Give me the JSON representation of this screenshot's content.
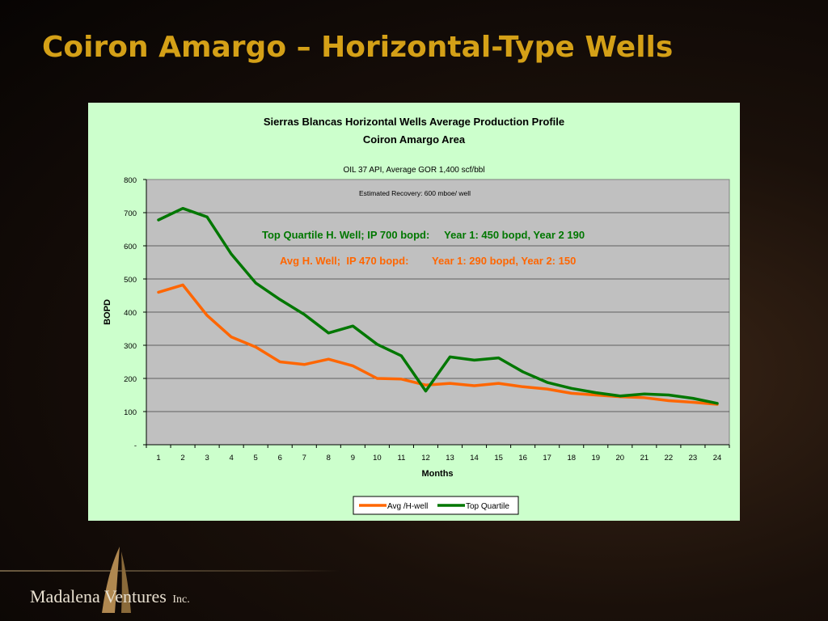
{
  "slide": {
    "title": "Coiron Amargo – Horizontal-Type Wells",
    "company": "Madalena Ventures",
    "company_suffix": "Inc."
  },
  "colors": {
    "avg": "#ff6600",
    "top": "#007700",
    "panel": "#ccffcc",
    "plot": "#c0c0c0",
    "title": "#d4a017"
  },
  "chart_data": {
    "type": "line",
    "title": "Sierras Blancas Horizontal Wells Average Production Profile",
    "subtitle": "Coiron Amargo Area",
    "note1": "OIL 37 API, Average GOR 1,400 scf/bbl",
    "note2": "Estimated Recovery: 600 mboe/ well",
    "annotation_top": "Top Quartile H. Well; IP 700 bopd:     Year 1: 450 bopd, Year 2 190",
    "annotation_avg": "Avg H. Well;  IP 470 bopd:        Year 1: 290 bopd, Year 2: 150",
    "xlabel": "Months",
    "ylabel": "BOPD",
    "ylim": [
      0,
      800
    ],
    "yticks": [
      0,
      100,
      200,
      300,
      400,
      500,
      600,
      700,
      800
    ],
    "ytick_labels": [
      "-",
      "100",
      "200",
      "300",
      "400",
      "500",
      "600",
      "700",
      "800"
    ],
    "categories": [
      "1",
      "2",
      "3",
      "4",
      "5",
      "6",
      "7",
      "8",
      "9",
      "10",
      "11",
      "12",
      "13",
      "14",
      "15",
      "16",
      "17",
      "18",
      "19",
      "20",
      "21",
      "22",
      "23",
      "24"
    ],
    "grid": "horizontal",
    "legend_position": "bottom",
    "series": [
      {
        "name": "Avg /H-well",
        "color": "#ff6600",
        "values": [
          460,
          482,
          390,
          325,
          295,
          250,
          242,
          258,
          238,
          200,
          198,
          180,
          185,
          178,
          185,
          175,
          168,
          155,
          150,
          145,
          142,
          133,
          128,
          122
        ]
      },
      {
        "name": "Top Quartile",
        "color": "#007700",
        "values": [
          678,
          713,
          687,
          575,
          488,
          438,
          393,
          337,
          358,
          303,
          268,
          162,
          265,
          255,
          262,
          220,
          188,
          170,
          157,
          147,
          153,
          150,
          140,
          125
        ]
      }
    ]
  }
}
